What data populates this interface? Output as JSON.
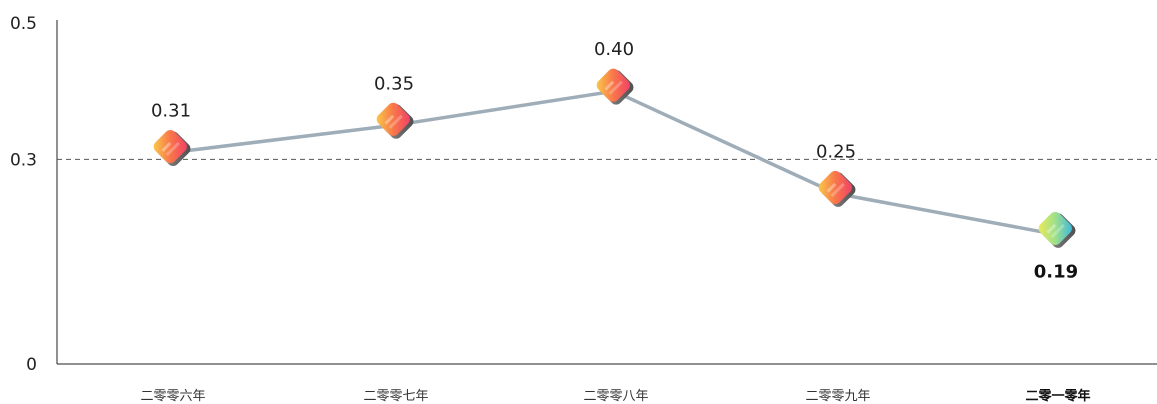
{
  "chart_data": {
    "type": "line",
    "categories": [
      "二零零六年",
      "二零零七年",
      "二零零八年",
      "二零零九年",
      "二零一零年"
    ],
    "values": [
      0.31,
      0.35,
      0.4,
      0.25,
      0.19
    ],
    "value_labels": [
      "0.31",
      "0.35",
      "0.40",
      "0.25",
      "0.19"
    ],
    "y_ticks": [
      {
        "value": 0,
        "label": "0"
      },
      {
        "value": 0.3,
        "label": "0.3"
      },
      {
        "value": 0.5,
        "label": "0.5"
      }
    ],
    "ylim": [
      0,
      0.5
    ],
    "reference_line": 0.3,
    "highlight_index": 4,
    "colors": {
      "line": "#9eadb8",
      "reference_line": "#555555",
      "axis": "#222222",
      "marker_gradient": [
        "#f9d24a",
        "#f9774a",
        "#f03a6a"
      ],
      "highlight_gradient": [
        "#f4ec52",
        "#9fe08a",
        "#33b4e6"
      ],
      "marker_shadow": "#6b6b6b"
    }
  }
}
